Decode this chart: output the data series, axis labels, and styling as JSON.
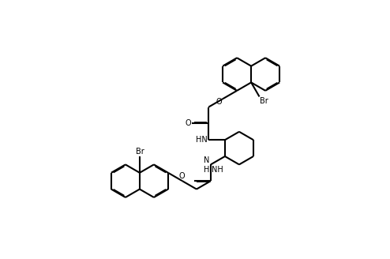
{
  "figsize": [
    4.94,
    3.28
  ],
  "dpi": 100,
  "bg": "#ffffff",
  "lc": "#000000",
  "lw": 1.5,
  "fs": 7.0,
  "bl": 0.27,
  "xlim": [
    0,
    4.94
  ],
  "ylim": [
    0,
    3.28
  ]
}
